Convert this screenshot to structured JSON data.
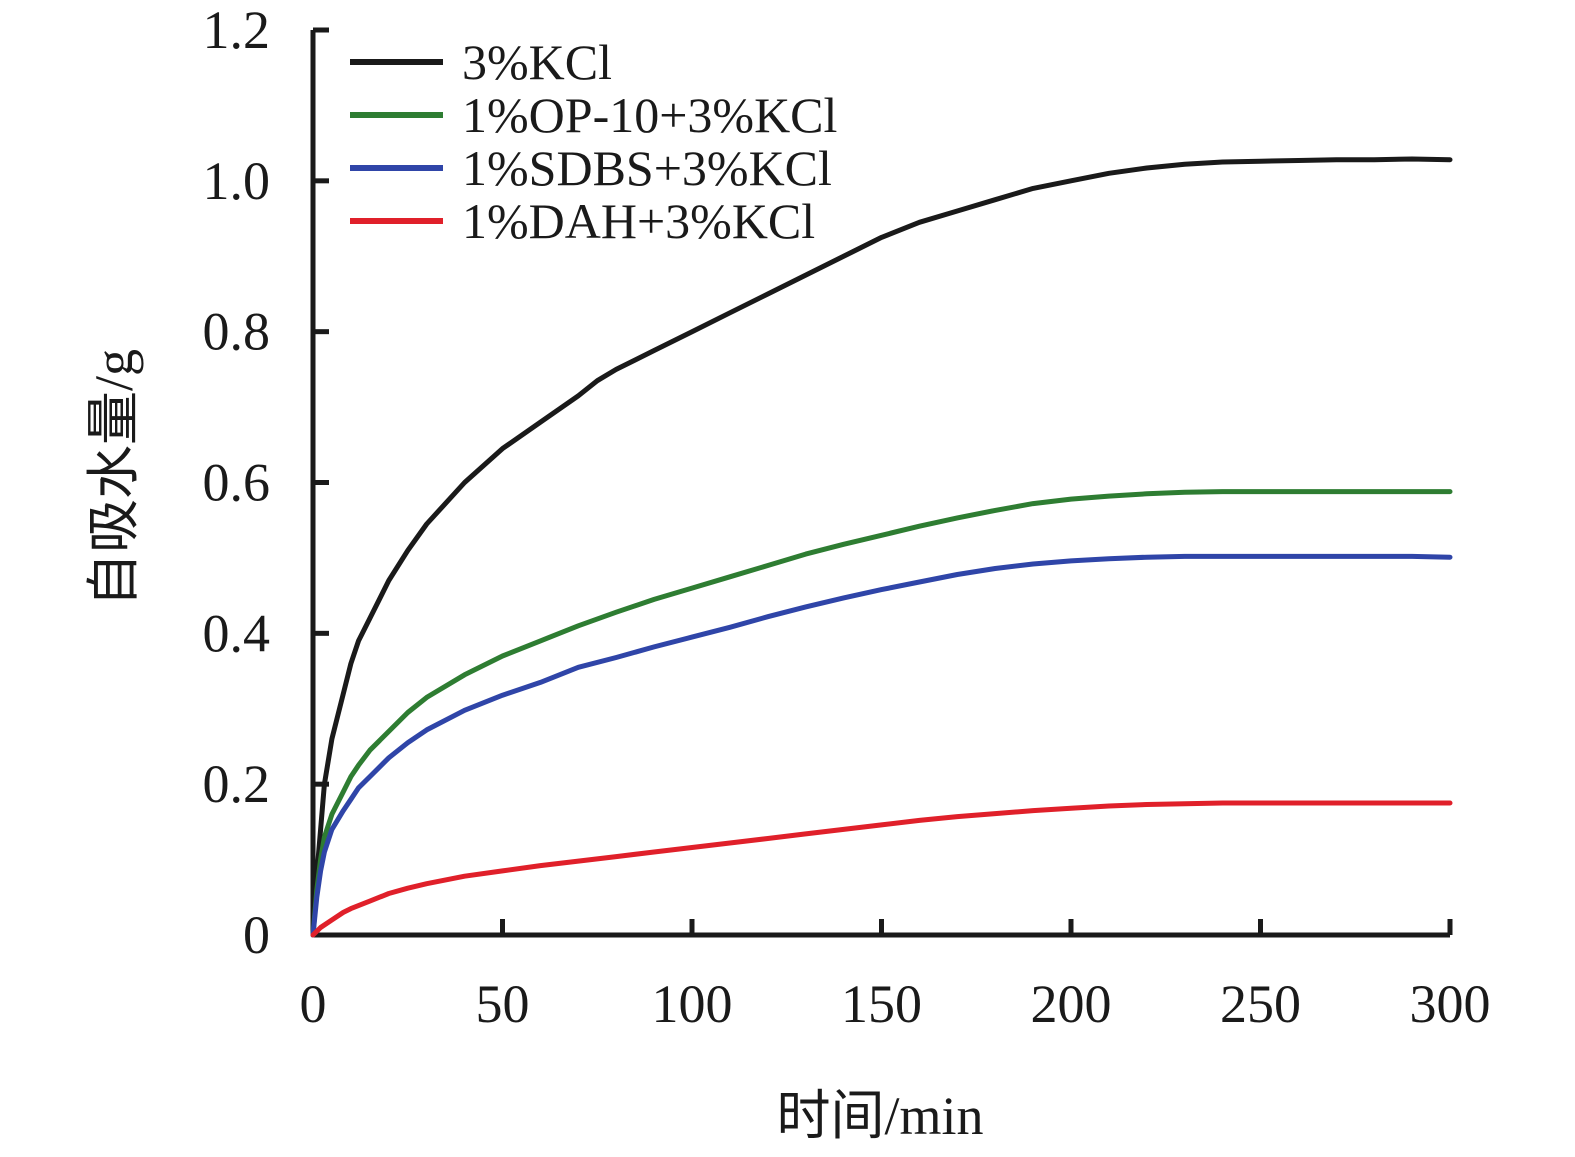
{
  "chart_data": {
    "type": "line",
    "title": "",
    "xlabel": "时间/min",
    "ylabel": "自吸水量/g",
    "xlim": [
      0,
      300
    ],
    "ylim": [
      0,
      1.2
    ],
    "x_ticks": [
      0,
      50,
      100,
      150,
      200,
      250,
      300
    ],
    "y_ticks": [
      0,
      0.2,
      0.4,
      0.6,
      0.8,
      1.0,
      1.2
    ],
    "x_tick_labels": [
      "0",
      "50",
      "100",
      "150",
      "200",
      "250",
      "300"
    ],
    "y_tick_labels": [
      "0",
      "0.2",
      "0.4",
      "0.6",
      "0.8",
      "1.0",
      "1.2"
    ],
    "grid": false,
    "legend_position": "top-left",
    "series": [
      {
        "name": "3%KCl",
        "color": "#1a1a1a",
        "x": [
          0,
          1,
          2,
          3,
          5,
          8,
          10,
          12,
          15,
          20,
          25,
          30,
          40,
          50,
          60,
          70,
          75,
          80,
          90,
          100,
          110,
          120,
          130,
          140,
          150,
          160,
          170,
          180,
          190,
          200,
          210,
          220,
          230,
          240,
          250,
          260,
          270,
          280,
          290,
          300
        ],
        "values": [
          0,
          0.08,
          0.14,
          0.2,
          0.26,
          0.32,
          0.36,
          0.39,
          0.42,
          0.47,
          0.51,
          0.545,
          0.6,
          0.645,
          0.68,
          0.715,
          0.735,
          0.75,
          0.775,
          0.8,
          0.825,
          0.85,
          0.875,
          0.9,
          0.925,
          0.945,
          0.96,
          0.975,
          0.99,
          1.0,
          1.01,
          1.017,
          1.022,
          1.025,
          1.026,
          1.027,
          1.028,
          1.028,
          1.029,
          1.028
        ]
      },
      {
        "name": "1%OP-10+3%KCl",
        "color": "#2e7d32",
        "x": [
          0,
          1,
          2,
          3,
          5,
          8,
          10,
          12,
          15,
          20,
          25,
          30,
          40,
          50,
          60,
          70,
          80,
          90,
          100,
          110,
          120,
          130,
          140,
          150,
          160,
          170,
          180,
          190,
          200,
          210,
          220,
          230,
          240,
          250,
          260,
          270,
          280,
          290,
          300
        ],
        "values": [
          0,
          0.06,
          0.1,
          0.13,
          0.16,
          0.19,
          0.21,
          0.225,
          0.245,
          0.27,
          0.295,
          0.315,
          0.345,
          0.37,
          0.39,
          0.41,
          0.428,
          0.445,
          0.46,
          0.475,
          0.49,
          0.505,
          0.518,
          0.53,
          0.542,
          0.553,
          0.563,
          0.572,
          0.578,
          0.582,
          0.585,
          0.587,
          0.588,
          0.588,
          0.588,
          0.588,
          0.588,
          0.588,
          0.588
        ]
      },
      {
        "name": "1%SDBS+3%KCl",
        "color": "#2f45a8",
        "x": [
          0,
          1,
          2,
          3,
          5,
          8,
          10,
          12,
          15,
          20,
          25,
          30,
          40,
          50,
          60,
          70,
          80,
          90,
          100,
          110,
          120,
          130,
          140,
          150,
          160,
          170,
          180,
          190,
          200,
          210,
          220,
          230,
          240,
          250,
          260,
          270,
          280,
          290,
          300
        ],
        "values": [
          0,
          0.05,
          0.085,
          0.11,
          0.14,
          0.165,
          0.18,
          0.195,
          0.21,
          0.235,
          0.255,
          0.272,
          0.298,
          0.318,
          0.335,
          0.355,
          0.368,
          0.382,
          0.395,
          0.408,
          0.422,
          0.435,
          0.447,
          0.458,
          0.468,
          0.478,
          0.486,
          0.492,
          0.496,
          0.499,
          0.501,
          0.502,
          0.502,
          0.502,
          0.502,
          0.502,
          0.502,
          0.502,
          0.501
        ]
      },
      {
        "name": "1%DAH+3%KCl",
        "color": "#e0202a",
        "x": [
          0,
          2,
          5,
          8,
          10,
          15,
          20,
          25,
          30,
          40,
          50,
          60,
          70,
          80,
          90,
          100,
          110,
          120,
          130,
          140,
          150,
          160,
          170,
          180,
          190,
          200,
          210,
          220,
          230,
          240,
          250,
          260,
          270,
          280,
          290,
          300
        ],
        "values": [
          0,
          0.01,
          0.02,
          0.03,
          0.035,
          0.045,
          0.055,
          0.062,
          0.068,
          0.078,
          0.085,
          0.092,
          0.098,
          0.104,
          0.11,
          0.116,
          0.122,
          0.128,
          0.134,
          0.14,
          0.146,
          0.152,
          0.157,
          0.161,
          0.165,
          0.168,
          0.171,
          0.173,
          0.174,
          0.175,
          0.175,
          0.175,
          0.175,
          0.175,
          0.175,
          0.175
        ]
      }
    ]
  }
}
